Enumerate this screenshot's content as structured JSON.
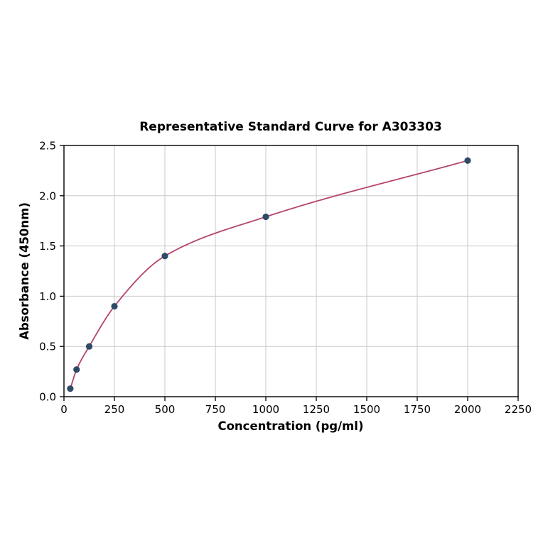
{
  "chart_data": {
    "type": "scatter",
    "title": "Representative Standard Curve for A303303",
    "xlabel": "Concentration (pg/ml)",
    "ylabel": "Absorbance (450nm)",
    "x": [
      31.25,
      62.5,
      125,
      250,
      500,
      1000,
      2000
    ],
    "y": [
      0.08,
      0.27,
      0.5,
      0.9,
      1.4,
      1.79,
      2.35
    ],
    "fit": "smooth saturation curve through points",
    "xlim": [
      0,
      2250
    ],
    "ylim": [
      0,
      2.5
    ],
    "xticks": [
      0,
      250,
      500,
      750,
      1000,
      1250,
      1500,
      1750,
      2000,
      2250
    ],
    "xtick_labels": [
      "0",
      "250",
      "500",
      "750",
      "1000",
      "1250",
      "1500",
      "1750",
      "2000",
      "2250"
    ],
    "yticks": [
      0.0,
      0.5,
      1.0,
      1.5,
      2.0,
      2.5
    ],
    "ytick_labels": [
      "0.0",
      "0.5",
      "1.0",
      "1.5",
      "2.0",
      "2.5"
    ],
    "grid": true,
    "legend": "none",
    "colors": {
      "line": "#b5446e",
      "marker": "#2e4a66",
      "grid": "#c9c9c9",
      "axis": "#000000",
      "background": "#ffffff"
    }
  }
}
